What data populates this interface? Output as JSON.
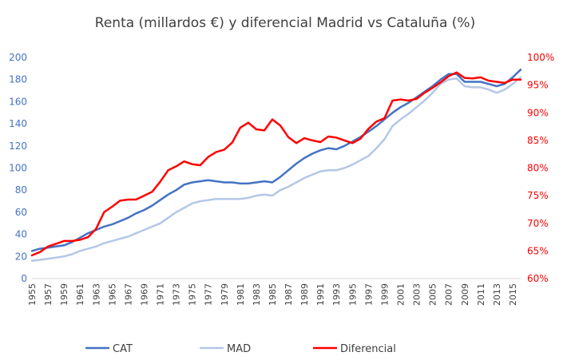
{
  "chart_data": {
    "type": "line",
    "title": "Renta (millardos €) y diferencial Madrid vs Cataluña (%)",
    "x": [
      1955,
      1956,
      1957,
      1958,
      1959,
      1960,
      1961,
      1962,
      1963,
      1964,
      1965,
      1966,
      1967,
      1968,
      1969,
      1970,
      1971,
      1972,
      1973,
      1974,
      1975,
      1976,
      1977,
      1978,
      1979,
      1980,
      1981,
      1982,
      1983,
      1984,
      1985,
      1986,
      1987,
      1988,
      1989,
      1990,
      1991,
      1992,
      1993,
      1994,
      1995,
      1996,
      1997,
      1998,
      1999,
      2000,
      2001,
      2002,
      2003,
      2004,
      2005,
      2006,
      2007,
      2008,
      2009,
      2010,
      2011,
      2012,
      2013,
      2014,
      2015,
      2016
    ],
    "x_tick_labels": [
      "1955",
      "1957",
      "1959",
      "1961",
      "1963",
      "1965",
      "1967",
      "1969",
      "1971",
      "1973",
      "1975",
      "1977",
      "1979",
      "1981",
      "1983",
      "1985",
      "1987",
      "1989",
      "1991",
      "1993",
      "1995",
      "1997",
      "1999",
      "2001",
      "2003",
      "2005",
      "2007",
      "2009",
      "2011",
      "2013",
      "2015"
    ],
    "y_left": {
      "min": 0,
      "max": 200,
      "ticks": [
        "0",
        "20",
        "40",
        "60",
        "80",
        "100",
        "120",
        "140",
        "160",
        "180",
        "200"
      ]
    },
    "y_right": {
      "min": 60,
      "max": 100,
      "ticks": [
        "60%",
        "65%",
        "70%",
        "75%",
        "80%",
        "85%",
        "90%",
        "95%",
        "100%"
      ]
    },
    "series": [
      {
        "name": "CAT",
        "axis": "left",
        "color": "#4472c4",
        "values": [
          25,
          27,
          28,
          29,
          30,
          33,
          37,
          41,
          44,
          47,
          49,
          52,
          55,
          59,
          62,
          66,
          71,
          76,
          80,
          85,
          87,
          88,
          89,
          88,
          87,
          87,
          86,
          86,
          87,
          88,
          87,
          92,
          98,
          104,
          109,
          113,
          116,
          118,
          117,
          120,
          124,
          128,
          133,
          138,
          144,
          150,
          155,
          159,
          164,
          169,
          174,
          180,
          185,
          185,
          178,
          178,
          178,
          176,
          174,
          176,
          182,
          189
        ]
      },
      {
        "name": "MAD",
        "axis": "left",
        "color": "#b4c7e7",
        "values": [
          16,
          17,
          18,
          19,
          20,
          22,
          25,
          27,
          29,
          32,
          34,
          36,
          38,
          41,
          44,
          47,
          50,
          55,
          60,
          64,
          68,
          70,
          71,
          72,
          72,
          72,
          72,
          73,
          75,
          76,
          75,
          80,
          83,
          87,
          91,
          94,
          97,
          98,
          98,
          100,
          103,
          107,
          111,
          118,
          126,
          138,
          144,
          149,
          155,
          161,
          168,
          176,
          180,
          181,
          174,
          173,
          173,
          171,
          168,
          171,
          176,
          182
        ]
      },
      {
        "name": "Diferencial",
        "axis": "right",
        "color": "#ff0000",
        "values": [
          64.2,
          64.8,
          65.8,
          66.3,
          66.8,
          66.8,
          67.0,
          67.5,
          69.0,
          72.0,
          73.0,
          74.1,
          74.3,
          74.3,
          75.0,
          75.7,
          77.5,
          79.6,
          80.3,
          81.2,
          80.7,
          80.5,
          82.0,
          82.9,
          83.3,
          84.6,
          87.3,
          88.2,
          87.0,
          86.8,
          88.8,
          87.7,
          85.6,
          84.5,
          85.4,
          85.0,
          84.7,
          85.7,
          85.5,
          85.0,
          84.5,
          85.3,
          87.1,
          88.4,
          89.0,
          92.2,
          92.4,
          92.2,
          92.5,
          93.6,
          94.5,
          95.5,
          96.6,
          97.3,
          96.3,
          96.2,
          96.4,
          95.8,
          95.6,
          95.4,
          96.0,
          96.0
        ]
      }
    ],
    "legend": {
      "position": "bottom",
      "items": [
        "CAT",
        "MAD",
        "Diferencial"
      ]
    },
    "grid": false
  }
}
